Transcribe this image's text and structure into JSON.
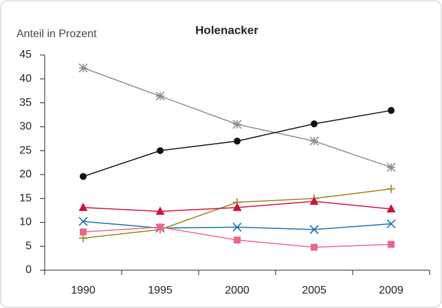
{
  "chart_data": {
    "type": "line",
    "title": "Holenacker",
    "y_label": "Anteil in Prozent",
    "categories": [
      "1990",
      "1995",
      "2000",
      "2005",
      "2009"
    ],
    "series": [
      {
        "color": "#8c8c8c",
        "marker": "asterisk",
        "values": [
          42.3,
          36.4,
          30.5,
          27.0,
          21.5
        ]
      },
      {
        "color": "#111111",
        "marker": "circle",
        "values": [
          19.6,
          25.0,
          27.0,
          30.6,
          33.4
        ]
      },
      {
        "color": "#9a8410",
        "marker": "plus",
        "values": [
          6.7,
          8.5,
          14.2,
          15.0,
          17.0
        ]
      },
      {
        "color": "#d0103a",
        "marker": "triangle",
        "values": [
          13.1,
          12.3,
          13.1,
          14.4,
          12.8
        ]
      },
      {
        "color": "#1a70b0",
        "marker": "cross",
        "values": [
          10.2,
          8.8,
          9.0,
          8.5,
          9.7
        ]
      },
      {
        "color": "#e8688a",
        "marker": "square",
        "values": [
          8.0,
          9.0,
          6.3,
          4.8,
          5.4
        ]
      }
    ],
    "ylim": [
      0,
      45
    ],
    "yticks": [
      0,
      5,
      10,
      15,
      20,
      25,
      30,
      35,
      40,
      45
    ],
    "grid": false
  }
}
